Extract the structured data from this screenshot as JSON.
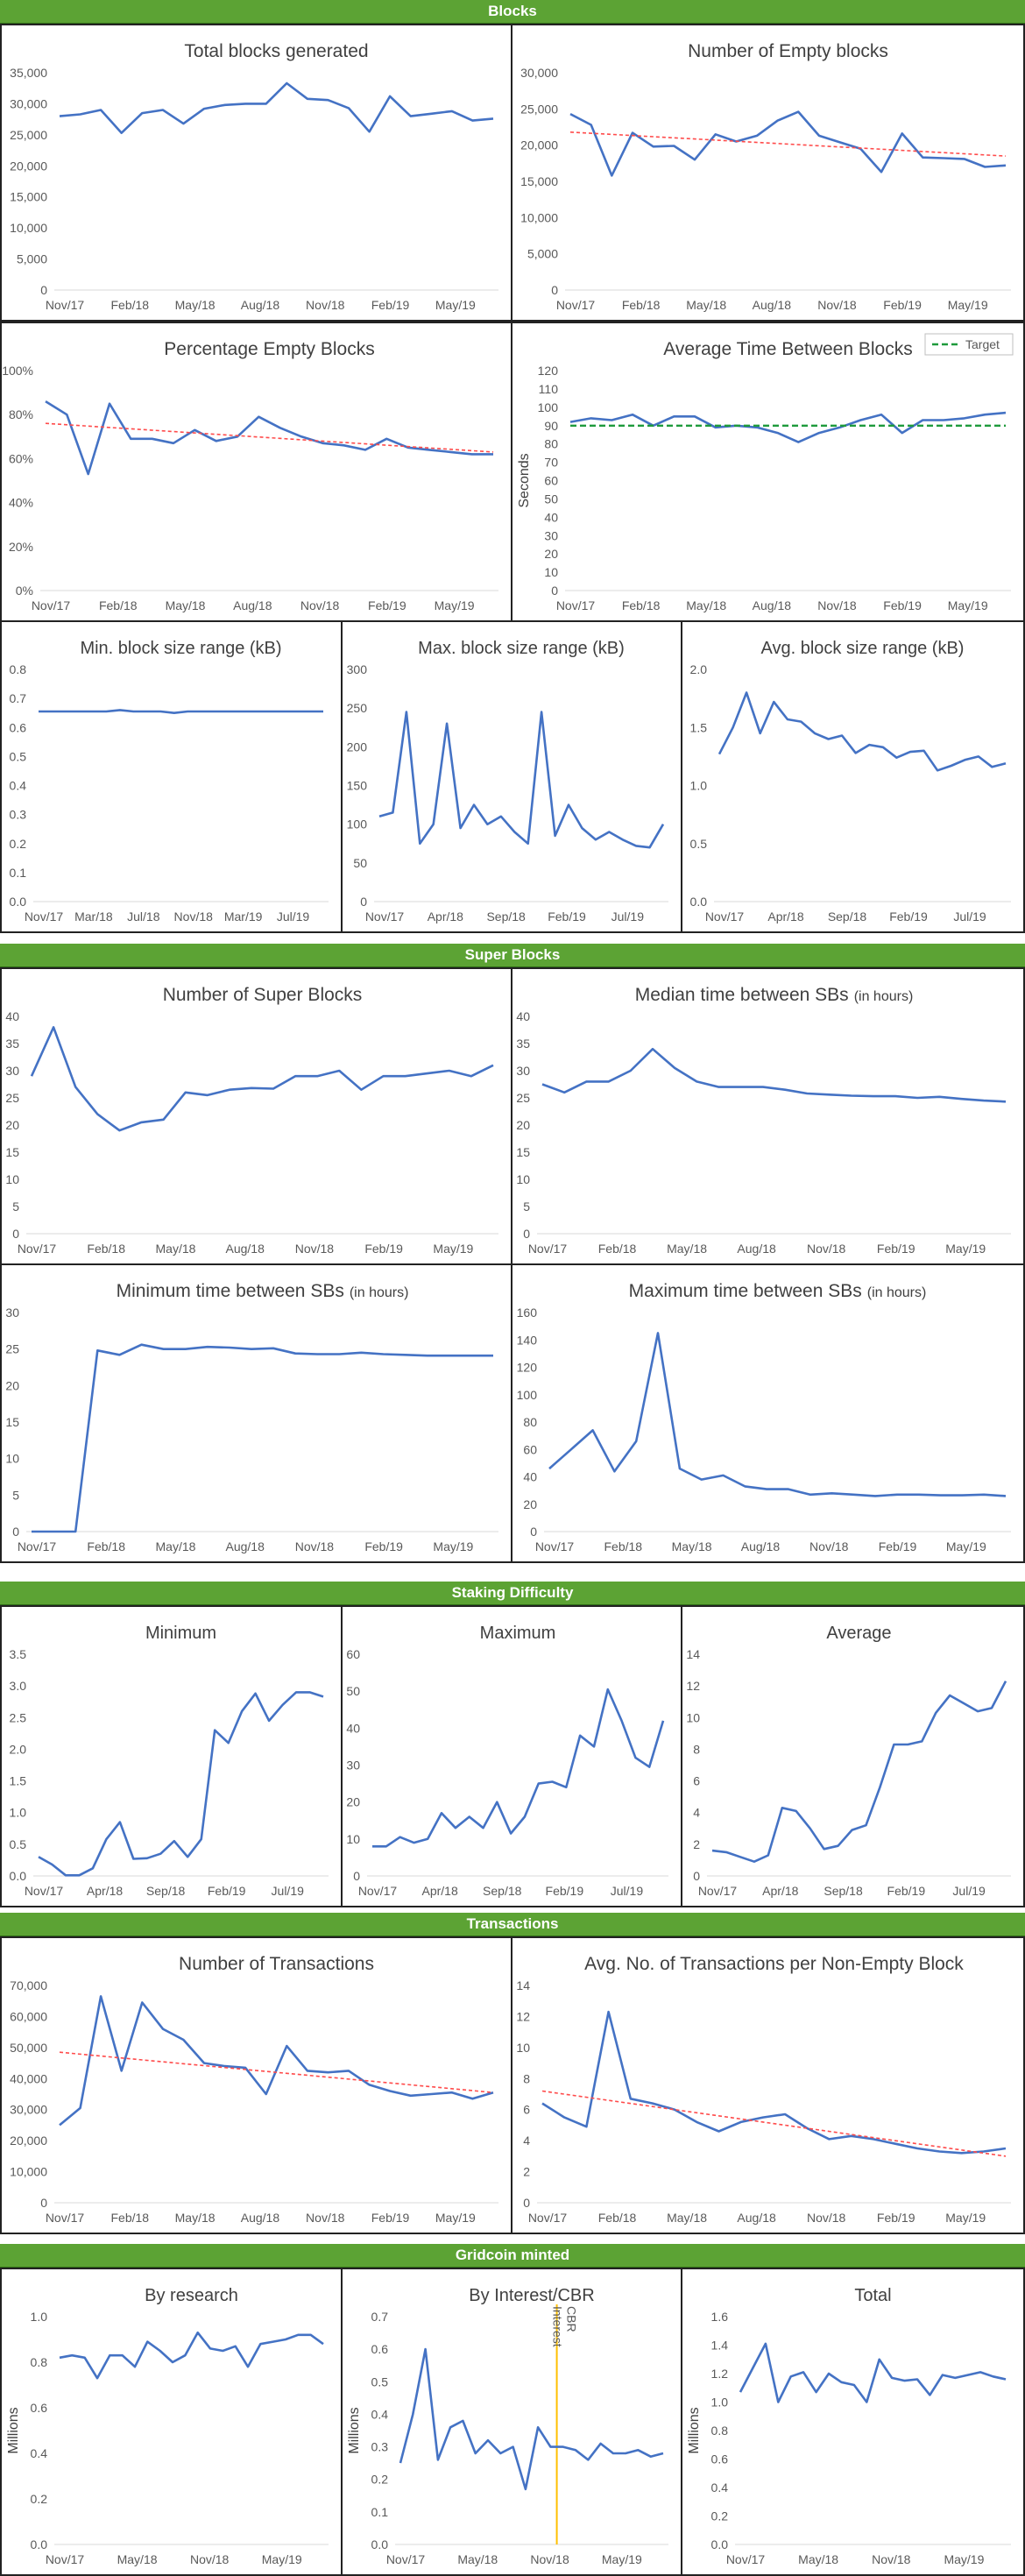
{
  "sections": [
    {
      "key": "blocks",
      "label": "Blocks"
    },
    {
      "key": "superblocks",
      "label": "Super Blocks"
    },
    {
      "key": "difficulty",
      "label": "Staking Difficulty"
    },
    {
      "key": "transactions",
      "label": "Transactions"
    },
    {
      "key": "minted",
      "label": "Gridcoin minted"
    }
  ],
  "chart_data": [
    {
      "id": "total-blocks",
      "type": "line",
      "title": "Total blocks generated",
      "xticks": [
        "Nov/17",
        "Feb/18",
        "May/18",
        "Aug/18",
        "Nov/18",
        "Feb/19",
        "May/19"
      ],
      "ylim": [
        0,
        35000
      ],
      "yticks": [
        0,
        5000,
        10000,
        15000,
        20000,
        25000,
        30000,
        35000
      ],
      "yfmt": "comma",
      "series": [
        {
          "color": "#4472c4",
          "values": [
            28000,
            28300,
            29000,
            25300,
            28500,
            29000,
            26800,
            29200,
            29800,
            30000,
            30000,
            33300,
            30800,
            30600,
            29300,
            25500,
            31200,
            28000,
            28400,
            28800,
            27300,
            27600
          ]
        }
      ]
    },
    {
      "id": "empty-blocks",
      "type": "line",
      "title": "Number of Empty blocks",
      "xticks": [
        "Nov/17",
        "Feb/18",
        "May/18",
        "Aug/18",
        "Nov/18",
        "Feb/19",
        "May/19"
      ],
      "ylim": [
        0,
        30000
      ],
      "yticks": [
        0,
        5000,
        10000,
        15000,
        20000,
        25000,
        30000
      ],
      "yfmt": "comma",
      "series": [
        {
          "color": "#4472c4",
          "values": [
            24300,
            22800,
            15800,
            21700,
            19800,
            19900,
            18000,
            21500,
            20500,
            21300,
            23400,
            24600,
            21300,
            20400,
            19500,
            16300,
            21600,
            18300,
            18200,
            18100,
            17000,
            17200
          ]
        },
        {
          "color": "#ff4b4b",
          "dashed": true,
          "values": [
            21800,
            18500
          ]
        }
      ]
    },
    {
      "id": "pct-empty",
      "type": "line",
      "title": "Percentage Empty Blocks",
      "xticks": [
        "Nov/17",
        "Feb/18",
        "May/18",
        "Aug/18",
        "Nov/18",
        "Feb/19",
        "May/19"
      ],
      "ylim": [
        0,
        100
      ],
      "yticks": [
        0,
        20,
        40,
        60,
        80,
        100
      ],
      "yfmt": "pct",
      "series": [
        {
          "color": "#4472c4",
          "values": [
            86,
            80,
            53,
            85,
            69,
            69,
            67,
            73,
            68,
            70,
            79,
            74,
            70,
            67,
            66,
            64,
            69,
            65,
            64,
            63,
            62,
            62
          ]
        },
        {
          "color": "#ff4b4b",
          "dashed": true,
          "values": [
            76,
            63
          ]
        }
      ]
    },
    {
      "id": "avg-time",
      "type": "line",
      "title": "Average Time Between Blocks",
      "xticks": [
        "Nov/17",
        "Feb/18",
        "May/18",
        "Aug/18",
        "Nov/18",
        "Feb/19",
        "May/19"
      ],
      "ylim": [
        0,
        120
      ],
      "yticks": [
        0,
        10,
        20,
        30,
        40,
        50,
        60,
        70,
        80,
        90,
        100,
        110,
        120
      ],
      "yfmt": "int",
      "ylabel": "Seconds",
      "legend": "Target",
      "series": [
        {
          "color": "#4472c4",
          "values": [
            92,
            94,
            93,
            96,
            90,
            95,
            95,
            89,
            90,
            89,
            86,
            81,
            86,
            89,
            93,
            96,
            86,
            93,
            93,
            94,
            96,
            97
          ]
        },
        {
          "color": "#1e9a3c",
          "dashed": true,
          "name": "Target",
          "values": [
            90,
            90
          ]
        }
      ]
    },
    {
      "id": "min-size",
      "type": "line",
      "title": "Min. block size range (kB)",
      "xticks": [
        "Nov/17",
        "Mar/18",
        "Jul/18",
        "Nov/18",
        "Mar/19",
        "Jul/19"
      ],
      "ylim": [
        0,
        0.8
      ],
      "yticks": [
        0,
        0.1,
        0.2,
        0.3,
        0.4,
        0.5,
        0.6,
        0.7,
        0.8
      ],
      "yfmt": "d1",
      "series": [
        {
          "color": "#4472c4",
          "values": [
            0.655,
            0.655,
            0.655,
            0.655,
            0.655,
            0.655,
            0.66,
            0.655,
            0.655,
            0.655,
            0.65,
            0.655,
            0.655,
            0.655,
            0.655,
            0.655,
            0.655,
            0.655,
            0.655,
            0.655,
            0.655,
            0.655
          ]
        }
      ]
    },
    {
      "id": "max-size",
      "type": "line",
      "title": "Max. block size range (kB)",
      "xticks": [
        "Nov/17",
        "Apr/18",
        "Sep/18",
        "Feb/19",
        "Jul/19"
      ],
      "ylim": [
        0,
        300
      ],
      "yticks": [
        0,
        50,
        100,
        150,
        200,
        250,
        300
      ],
      "yfmt": "int",
      "series": [
        {
          "color": "#4472c4",
          "values": [
            110,
            115,
            245,
            75,
            100,
            230,
            95,
            125,
            100,
            110,
            90,
            75,
            245,
            85,
            125,
            95,
            80,
            90,
            80,
            72,
            70,
            100
          ]
        }
      ]
    },
    {
      "id": "avg-size",
      "type": "line",
      "title": "Avg. block size range (kB)",
      "xticks": [
        "Nov/17",
        "Apr/18",
        "Sep/18",
        "Feb/19",
        "Jul/19"
      ],
      "ylim": [
        0,
        2
      ],
      "yticks": [
        0,
        0.5,
        1.0,
        1.5,
        2.0
      ],
      "yfmt": "d1",
      "series": [
        {
          "color": "#4472c4",
          "values": [
            1.27,
            1.5,
            1.8,
            1.45,
            1.72,
            1.57,
            1.55,
            1.45,
            1.4,
            1.43,
            1.28,
            1.35,
            1.33,
            1.24,
            1.29,
            1.3,
            1.13,
            1.17,
            1.22,
            1.25,
            1.16,
            1.19
          ]
        }
      ]
    },
    {
      "id": "num-sb",
      "type": "line",
      "title": "Number of Super Blocks",
      "xticks": [
        "Nov/17",
        "Feb/18",
        "May/18",
        "Aug/18",
        "Nov/18",
        "Feb/19",
        "May/19"
      ],
      "ylim": [
        0,
        40
      ],
      "yticks": [
        0,
        5,
        10,
        15,
        20,
        25,
        30,
        35,
        40
      ],
      "yfmt": "int",
      "series": [
        {
          "color": "#4472c4",
          "values": [
            29,
            38,
            27,
            22,
            19,
            20.5,
            21,
            26,
            25.5,
            26.5,
            26.8,
            26.7,
            29,
            29,
            30,
            26.5,
            29,
            29,
            29.5,
            30,
            29,
            31
          ]
        }
      ]
    },
    {
      "id": "median-sb",
      "type": "line",
      "title": "Median time between SBs",
      "title_small": "(in hours)",
      "xticks": [
        "Nov/17",
        "Feb/18",
        "May/18",
        "Aug/18",
        "Nov/18",
        "Feb/19",
        "May/19"
      ],
      "ylim": [
        0,
        40
      ],
      "yticks": [
        0,
        5,
        10,
        15,
        20,
        25,
        30,
        35,
        40
      ],
      "yfmt": "int",
      "series": [
        {
          "color": "#4472c4",
          "values": [
            27.5,
            26,
            28,
            28,
            30,
            34,
            30.5,
            28,
            27,
            27,
            27,
            26.5,
            25.8,
            25.6,
            25.4,
            25.3,
            25.3,
            25,
            25.2,
            24.8,
            24.5,
            24.3
          ]
        }
      ]
    },
    {
      "id": "min-sb",
      "type": "line",
      "title": "Minimum time between SBs",
      "title_small": "(in hours)",
      "xticks": [
        "Nov/17",
        "Feb/18",
        "May/18",
        "Aug/18",
        "Nov/18",
        "Feb/19",
        "May/19"
      ],
      "ylim": [
        0,
        30
      ],
      "yticks": [
        0,
        5,
        10,
        15,
        20,
        25,
        30
      ],
      "yfmt": "int",
      "series": [
        {
          "color": "#4472c4",
          "values": [
            0,
            0,
            0,
            24.8,
            24.2,
            25.6,
            25,
            25,
            25.3,
            25.2,
            25,
            25.1,
            24.4,
            24.3,
            24.3,
            24.5,
            24.3,
            24.2,
            24.1,
            24.1,
            24.1,
            24.1
          ]
        }
      ]
    },
    {
      "id": "max-sb",
      "type": "line",
      "title": "Maximum time  between SBs",
      "title_small": "(in hours)",
      "xticks": [
        "Nov/17",
        "Feb/18",
        "May/18",
        "Aug/18",
        "Nov/18",
        "Feb/19",
        "May/19"
      ],
      "ylim": [
        0,
        160
      ],
      "yticks": [
        0,
        20,
        40,
        60,
        80,
        100,
        120,
        140,
        160
      ],
      "yfmt": "int",
      "series": [
        {
          "color": "#4472c4",
          "values": [
            46,
            60,
            74,
            44,
            66,
            145,
            46,
            38,
            41,
            33,
            31,
            31,
            27,
            28,
            27,
            26,
            27,
            27,
            26.5,
            26.5,
            27,
            26
          ]
        }
      ]
    },
    {
      "id": "diff-min",
      "type": "line",
      "title": "Minimum",
      "xticks": [
        "Nov/17",
        "Apr/18",
        "Sep/18",
        "Feb/19",
        "Jul/19"
      ],
      "ylim": [
        0,
        3.5
      ],
      "yticks": [
        0,
        0.5,
        1.0,
        1.5,
        2.0,
        2.5,
        3.0,
        3.5
      ],
      "yfmt": "d1",
      "series": [
        {
          "color": "#4472c4",
          "values": [
            0.3,
            0.18,
            0.01,
            0.01,
            0.12,
            0.58,
            0.85,
            0.27,
            0.28,
            0.35,
            0.55,
            0.3,
            0.58,
            2.3,
            2.1,
            2.6,
            2.88,
            2.45,
            2.7,
            2.9,
            2.9,
            2.83
          ]
        }
      ]
    },
    {
      "id": "diff-max",
      "type": "line",
      "title": "Maximum",
      "xticks": [
        "Nov/17",
        "Apr/18",
        "Sep/18",
        "Feb/19",
        "Jul/19"
      ],
      "ylim": [
        0,
        60
      ],
      "yticks": [
        0,
        10,
        20,
        30,
        40,
        50,
        60
      ],
      "yfmt": "int",
      "series": [
        {
          "color": "#4472c4",
          "values": [
            8,
            8,
            10.5,
            9,
            10,
            17,
            13,
            16,
            13,
            20,
            11.5,
            16,
            25,
            25.5,
            24,
            38,
            35,
            50.5,
            42,
            32,
            29.5,
            42
          ]
        }
      ]
    },
    {
      "id": "diff-avg",
      "type": "line",
      "title": "Average",
      "xticks": [
        "Nov/17",
        "Apr/18",
        "Sep/18",
        "Feb/19",
        "Jul/19"
      ],
      "ylim": [
        0,
        14
      ],
      "yticks": [
        0,
        2,
        4,
        6,
        8,
        10,
        12,
        14
      ],
      "yfmt": "int",
      "series": [
        {
          "color": "#4472c4",
          "values": [
            1.6,
            1.5,
            1.2,
            0.9,
            1.3,
            4.3,
            4.1,
            3,
            1.7,
            1.9,
            2.9,
            3.2,
            5.6,
            8.3,
            8.3,
            8.5,
            10.3,
            11.4,
            10.9,
            10.4,
            10.6,
            12.3
          ]
        }
      ]
    },
    {
      "id": "num-tx",
      "type": "line",
      "title": "Number of Transactions",
      "xticks": [
        "Nov/17",
        "Feb/18",
        "May/18",
        "Aug/18",
        "Nov/18",
        "Feb/19",
        "May/19"
      ],
      "ylim": [
        0,
        70000
      ],
      "yticks": [
        0,
        10000,
        20000,
        30000,
        40000,
        50000,
        60000,
        70000
      ],
      "yfmt": "comma",
      "series": [
        {
          "color": "#4472c4",
          "values": [
            25000,
            30500,
            66500,
            42500,
            64500,
            56000,
            52500,
            45000,
            44000,
            43500,
            35000,
            50500,
            42500,
            42000,
            42500,
            38000,
            36000,
            34500,
            35000,
            35500,
            33500,
            35500
          ]
        },
        {
          "color": "#ff4b4b",
          "dashed": true,
          "values": [
            48500,
            35500
          ]
        }
      ]
    },
    {
      "id": "tx-per-block",
      "type": "line",
      "title": "Avg. No. of Transactions per Non-Empty Block",
      "xticks": [
        "Nov/17",
        "Feb/18",
        "May/18",
        "Aug/18",
        "Nov/18",
        "Feb/19",
        "May/19"
      ],
      "ylim": [
        0,
        14
      ],
      "yticks": [
        0,
        2,
        4,
        6,
        8,
        10,
        12,
        14
      ],
      "yfmt": "int",
      "series": [
        {
          "color": "#4472c4",
          "values": [
            6.4,
            5.5,
            4.9,
            12.3,
            6.7,
            6.4,
            6.0,
            5.2,
            4.6,
            5.2,
            5.5,
            5.7,
            4.8,
            4.1,
            4.3,
            4.1,
            3.8,
            3.5,
            3.3,
            3.2,
            3.3,
            3.5
          ]
        },
        {
          "color": "#ff4b4b",
          "dashed": true,
          "values": [
            7.2,
            3.0
          ]
        }
      ]
    },
    {
      "id": "by-research",
      "type": "line",
      "title": "By research",
      "xticks": [
        "Nov/17",
        "May/18",
        "Nov/18",
        "May/19"
      ],
      "ylim": [
        0,
        1.0
      ],
      "yticks": [
        0,
        0.2,
        0.4,
        0.6,
        0.8,
        1.0
      ],
      "yfmt": "d1",
      "ylabel": "Millions",
      "series": [
        {
          "color": "#4472c4",
          "values": [
            0.82,
            0.83,
            0.82,
            0.73,
            0.83,
            0.83,
            0.78,
            0.89,
            0.85,
            0.8,
            0.83,
            0.93,
            0.86,
            0.85,
            0.87,
            0.78,
            0.88,
            0.89,
            0.9,
            0.92,
            0.92,
            0.88
          ]
        }
      ]
    },
    {
      "id": "by-interest",
      "type": "line",
      "title": "By Interest/CBR",
      "xticks": [
        "Nov/17",
        "May/18",
        "Nov/18",
        "May/19"
      ],
      "ylim": [
        0,
        0.7
      ],
      "yticks": [
        0,
        0.1,
        0.2,
        0.3,
        0.4,
        0.5,
        0.6,
        0.7
      ],
      "yfmt": "d1",
      "ylabel": "Millions",
      "vline_labels": [
        "Interest",
        "CBR"
      ],
      "vline_index": 12.5,
      "series": [
        {
          "color": "#4472c4",
          "values": [
            0.25,
            0.4,
            0.6,
            0.26,
            0.36,
            0.38,
            0.28,
            0.32,
            0.28,
            0.3,
            0.17,
            0.36,
            0.3,
            0.3,
            0.29,
            0.26,
            0.31,
            0.28,
            0.28,
            0.29,
            0.27,
            0.28
          ]
        }
      ]
    },
    {
      "id": "minted-total",
      "type": "line",
      "title": "Total",
      "xticks": [
        "Nov/17",
        "May/18",
        "Nov/18",
        "May/19"
      ],
      "ylim": [
        0,
        1.6
      ],
      "yticks": [
        0,
        0.2,
        0.4,
        0.6,
        0.8,
        1.0,
        1.2,
        1.4,
        1.6
      ],
      "yfmt": "d1",
      "ylabel": "Millions",
      "series": [
        {
          "color": "#4472c4",
          "values": [
            1.07,
            1.24,
            1.41,
            1.0,
            1.18,
            1.21,
            1.07,
            1.2,
            1.14,
            1.12,
            1.0,
            1.3,
            1.17,
            1.15,
            1.16,
            1.05,
            1.19,
            1.17,
            1.19,
            1.21,
            1.18,
            1.16
          ]
        }
      ]
    }
  ]
}
